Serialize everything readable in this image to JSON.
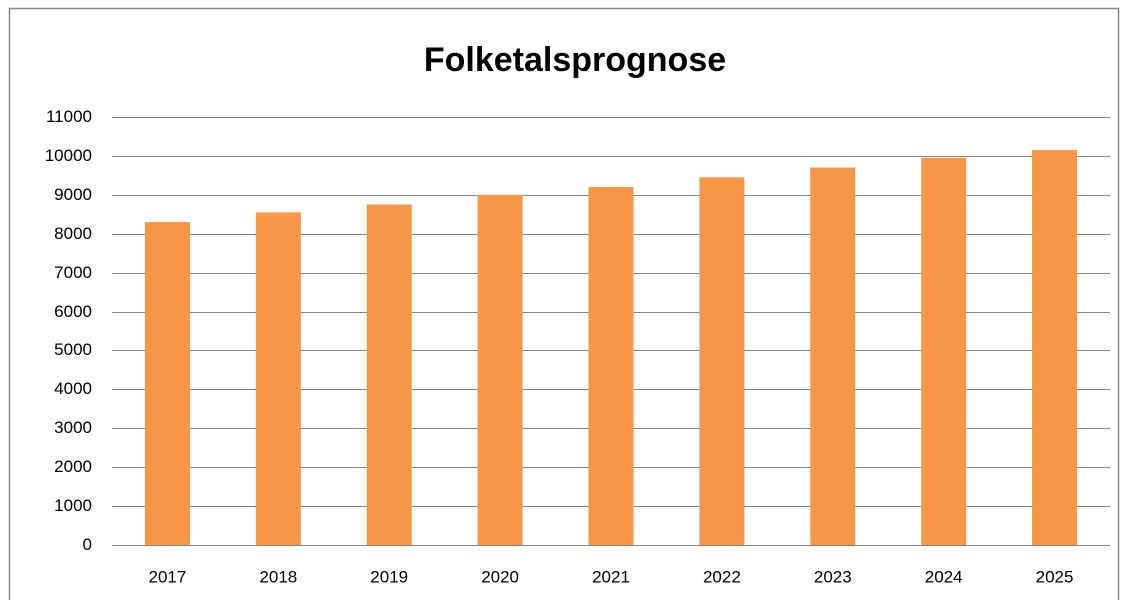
{
  "chart_data": {
    "type": "bar",
    "title": "Folketalsprognose",
    "categories": [
      "2017",
      "2018",
      "2019",
      "2020",
      "2021",
      "2022",
      "2023",
      "2024",
      "2025"
    ],
    "values": [
      8300,
      8550,
      8750,
      9000,
      9200,
      9450,
      9700,
      9950,
      10150
    ],
    "color": "#f79646",
    "ylim": [
      0,
      11000
    ],
    "yticks": [
      0,
      1000,
      2000,
      3000,
      4000,
      5000,
      6000,
      7000,
      8000,
      9000,
      10000,
      11000
    ],
    "grid": true
  }
}
